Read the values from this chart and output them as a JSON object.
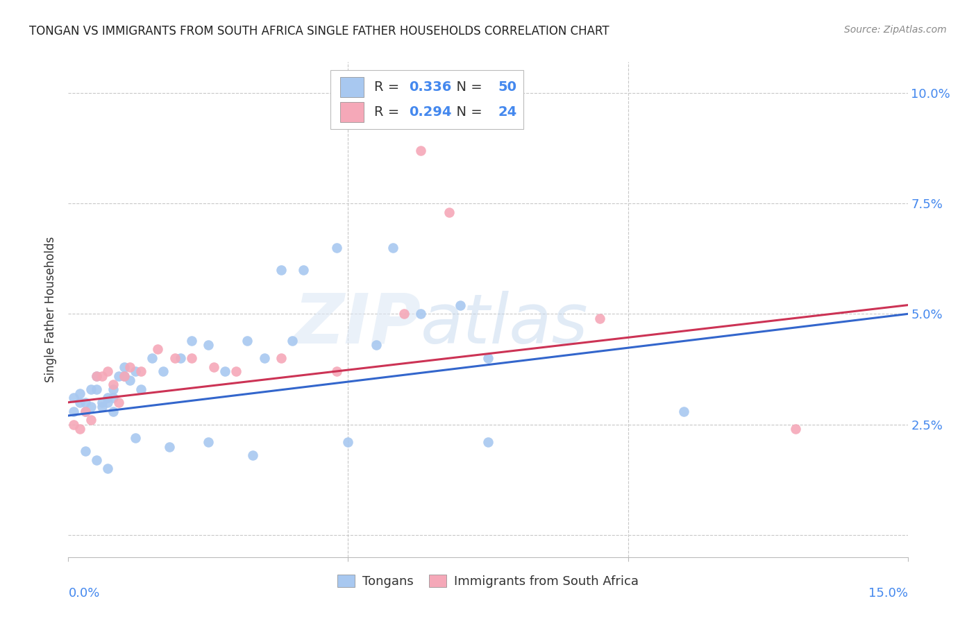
{
  "title": "TONGAN VS IMMIGRANTS FROM SOUTH AFRICA SINGLE FATHER HOUSEHOLDS CORRELATION CHART",
  "source": "Source: ZipAtlas.com",
  "ylabel": "Single Father Households",
  "blue_R": 0.336,
  "blue_N": 50,
  "pink_R": 0.294,
  "pink_N": 24,
  "blue_color": "#a8c8f0",
  "pink_color": "#f5a8b8",
  "blue_line_color": "#3366cc",
  "pink_line_color": "#cc3355",
  "background_color": "#ffffff",
  "xlim": [
    0.0,
    0.15
  ],
  "ylim": [
    -0.005,
    0.107
  ],
  "y_ticks": [
    0.0,
    0.025,
    0.05,
    0.075,
    0.1
  ],
  "blue_x": [
    0.001,
    0.001,
    0.002,
    0.002,
    0.003,
    0.003,
    0.004,
    0.004,
    0.005,
    0.005,
    0.006,
    0.006,
    0.007,
    0.007,
    0.008,
    0.008,
    0.008,
    0.009,
    0.01,
    0.01,
    0.011,
    0.012,
    0.013,
    0.015,
    0.017,
    0.02,
    0.022,
    0.025,
    0.028,
    0.032,
    0.035,
    0.038,
    0.04,
    0.042,
    0.048,
    0.055,
    0.058,
    0.063,
    0.07,
    0.075,
    0.003,
    0.005,
    0.007,
    0.012,
    0.018,
    0.025,
    0.033,
    0.05,
    0.075,
    0.11
  ],
  "blue_y": [
    0.031,
    0.028,
    0.03,
    0.032,
    0.028,
    0.03,
    0.029,
    0.033,
    0.033,
    0.036,
    0.03,
    0.029,
    0.03,
    0.031,
    0.028,
    0.031,
    0.033,
    0.036,
    0.036,
    0.038,
    0.035,
    0.037,
    0.033,
    0.04,
    0.037,
    0.04,
    0.044,
    0.043,
    0.037,
    0.044,
    0.04,
    0.06,
    0.044,
    0.06,
    0.065,
    0.043,
    0.065,
    0.05,
    0.052,
    0.04,
    0.019,
    0.017,
    0.015,
    0.022,
    0.02,
    0.021,
    0.018,
    0.021,
    0.021,
    0.028
  ],
  "pink_x": [
    0.001,
    0.002,
    0.003,
    0.004,
    0.005,
    0.006,
    0.007,
    0.008,
    0.009,
    0.01,
    0.011,
    0.013,
    0.016,
    0.019,
    0.022,
    0.026,
    0.03,
    0.038,
    0.048,
    0.06,
    0.063,
    0.068,
    0.095,
    0.13
  ],
  "pink_y": [
    0.025,
    0.024,
    0.028,
    0.026,
    0.036,
    0.036,
    0.037,
    0.034,
    0.03,
    0.036,
    0.038,
    0.037,
    0.042,
    0.04,
    0.04,
    0.038,
    0.037,
    0.04,
    0.037,
    0.05,
    0.087,
    0.073,
    0.049,
    0.024
  ],
  "blue_trend_x0": 0.0,
  "blue_trend_y0": 0.027,
  "blue_trend_x1": 0.15,
  "blue_trend_y1": 0.05,
  "pink_trend_x0": 0.0,
  "pink_trend_y0": 0.03,
  "pink_trend_x1": 0.15,
  "pink_trend_y1": 0.052
}
